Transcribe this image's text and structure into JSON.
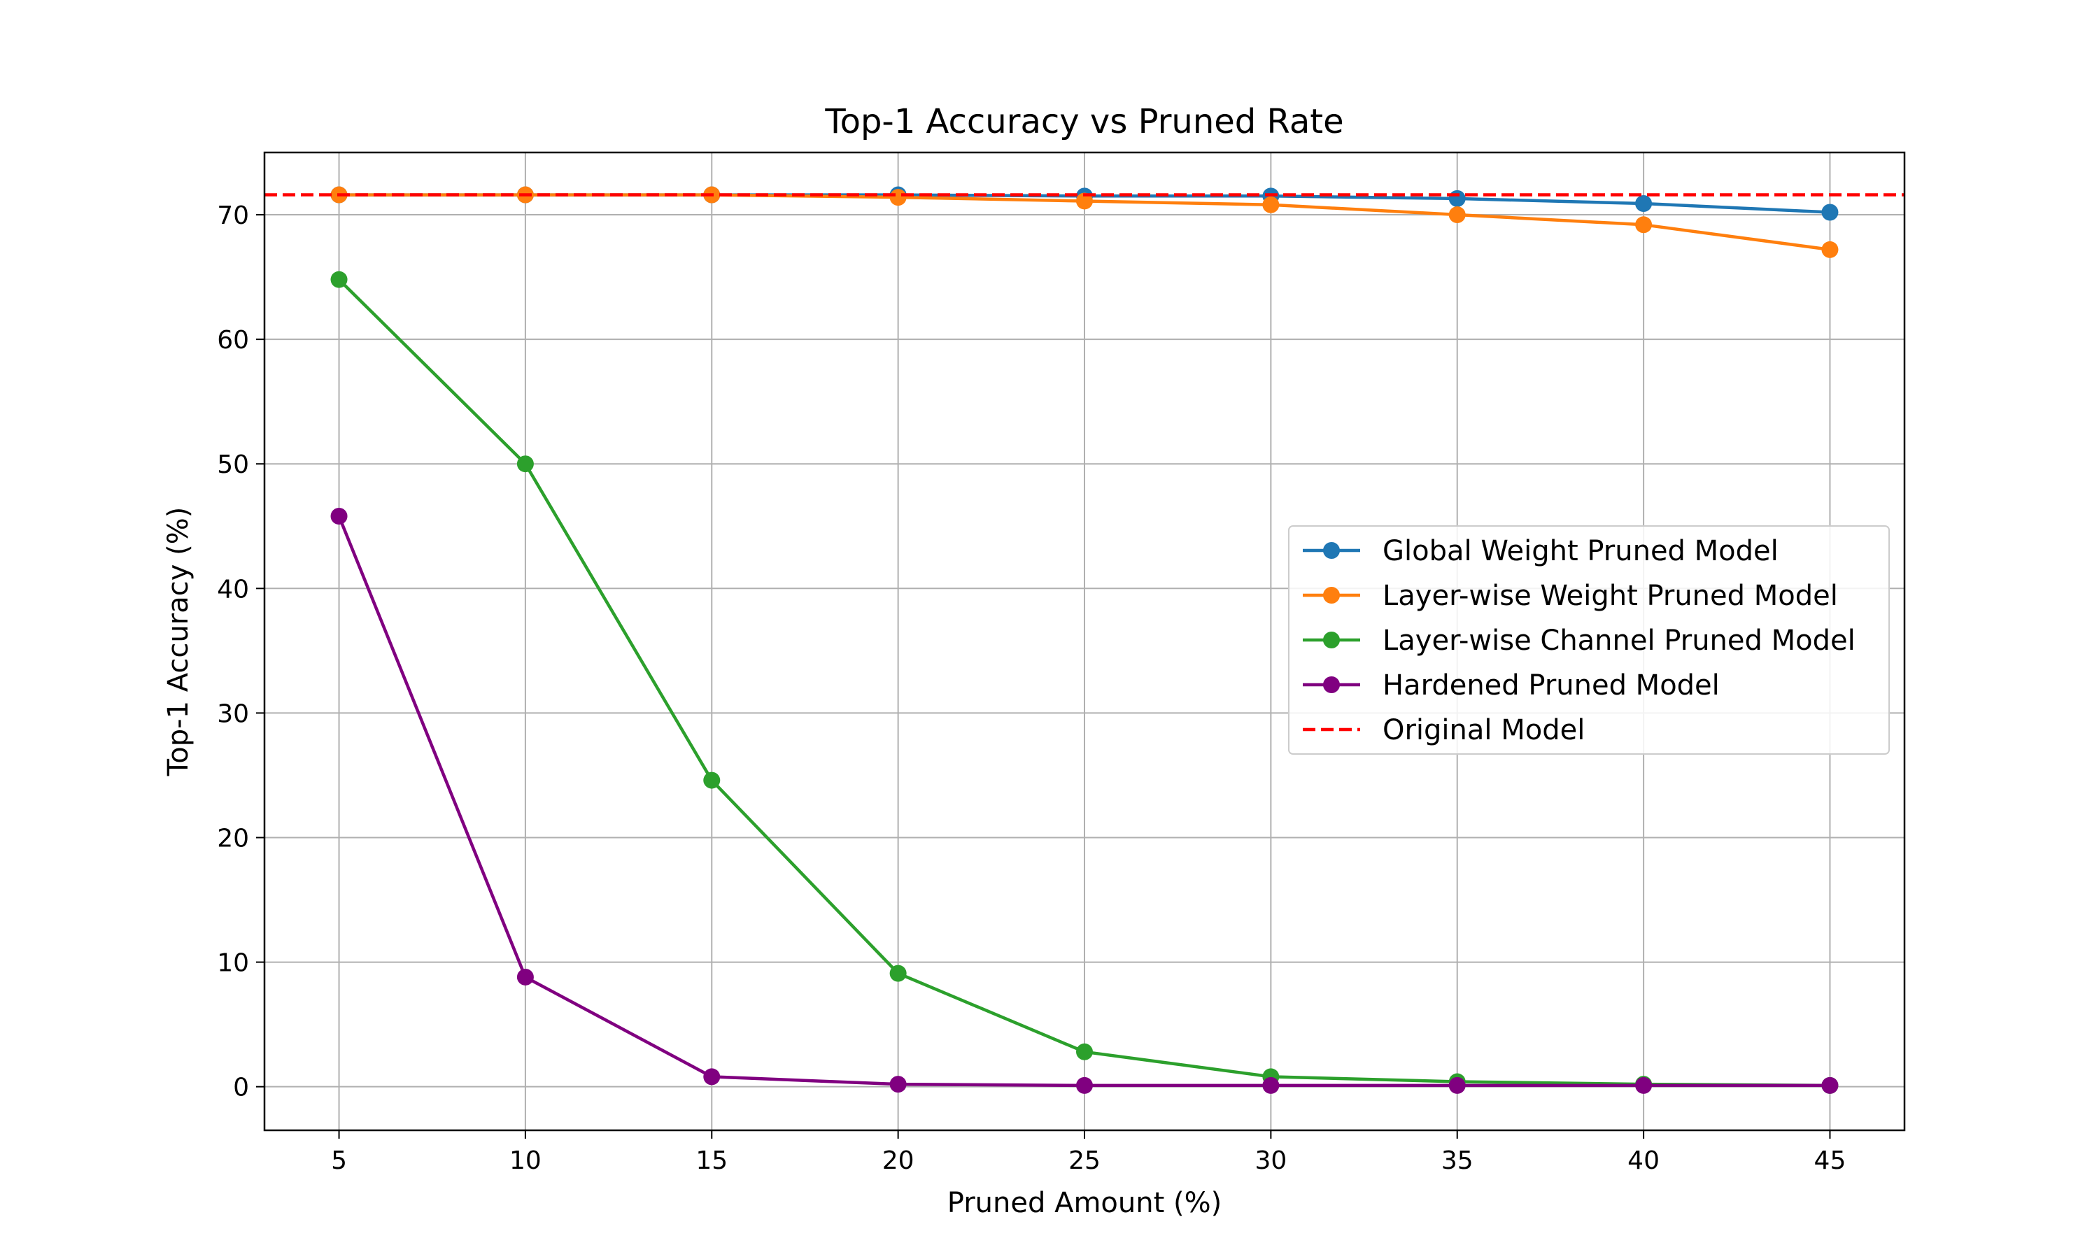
{
  "chart_data": {
    "type": "line",
    "title": "Top-1 Accuracy vs Pruned Rate",
    "xlabel": "Pruned Amount (%)",
    "ylabel": "Top-1 Accuracy (%)",
    "x": [
      5,
      10,
      15,
      20,
      25,
      30,
      35,
      40,
      45
    ],
    "xticks": [
      "5",
      "10",
      "15",
      "20",
      "25",
      "30",
      "35",
      "40",
      "45"
    ],
    "yticks": [
      "0",
      "10",
      "20",
      "30",
      "40",
      "50",
      "60",
      "70"
    ],
    "xlim": [
      3,
      47
    ],
    "ylim": [
      -3.5,
      75
    ],
    "grid": true,
    "legend_position": "center-right",
    "series": [
      {
        "name": "Global Weight Pruned Model",
        "color": "#1f77b4",
        "marker": "circle",
        "linestyle": "solid",
        "values": [
          71.6,
          71.6,
          71.6,
          71.6,
          71.5,
          71.5,
          71.3,
          70.9,
          70.2
        ]
      },
      {
        "name": "Layer-wise Weight Pruned Model",
        "color": "#ff7f0e",
        "marker": "circle",
        "linestyle": "solid",
        "values": [
          71.6,
          71.6,
          71.6,
          71.4,
          71.1,
          70.8,
          70.0,
          69.2,
          67.2
        ]
      },
      {
        "name": "Layer-wise Channel Pruned Model",
        "color": "#2ca02c",
        "marker": "circle",
        "linestyle": "solid",
        "values": [
          64.8,
          50.0,
          24.6,
          9.1,
          2.8,
          0.8,
          0.4,
          0.2,
          0.1
        ]
      },
      {
        "name": "Hardened Pruned Model",
        "color": "#800080",
        "marker": "circle",
        "linestyle": "solid",
        "values": [
          45.8,
          8.8,
          0.8,
          0.2,
          0.1,
          0.1,
          0.1,
          0.1,
          0.1
        ]
      },
      {
        "name": "Original Model",
        "color": "#ff0000",
        "marker": "none",
        "linestyle": "dashed",
        "constant": 71.6
      }
    ]
  }
}
